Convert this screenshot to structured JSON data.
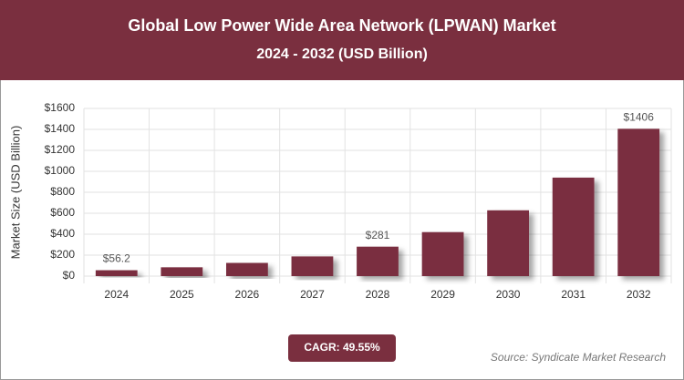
{
  "chart_data": {
    "type": "bar",
    "title": "Global Low Power Wide Area Network (LPWAN) Market",
    "subtitle": "2024 - 2032 (USD Billion)",
    "y_label": "Market Size (USD Billion)",
    "categories": [
      "2024",
      "2025",
      "2026",
      "2027",
      "2028",
      "2029",
      "2030",
      "2031",
      "2032"
    ],
    "values": [
      56.2,
      84,
      126,
      188,
      281,
      420,
      628,
      940,
      1406
    ],
    "value_labels": [
      "$56.2",
      null,
      null,
      null,
      "$281",
      null,
      null,
      null,
      "$1406"
    ],
    "color": "#7a2f3f",
    "ylim": [
      0,
      1600
    ],
    "yticks": [
      {
        "value": 0,
        "label": "$0"
      },
      {
        "value": 200,
        "label": "$200"
      },
      {
        "value": 400,
        "label": "$400"
      },
      {
        "value": 600,
        "label": "$600"
      },
      {
        "value": 800,
        "label": "$800"
      },
      {
        "value": 1000,
        "label": "$1000"
      },
      {
        "value": 1200,
        "label": "$1200"
      },
      {
        "value": 1400,
        "label": "$1400"
      },
      {
        "value": 1600,
        "label": "$1600"
      }
    ],
    "grid": true,
    "cagr_label": "CAGR: 49.55%",
    "source": "Source: Syndicate Market Research"
  }
}
